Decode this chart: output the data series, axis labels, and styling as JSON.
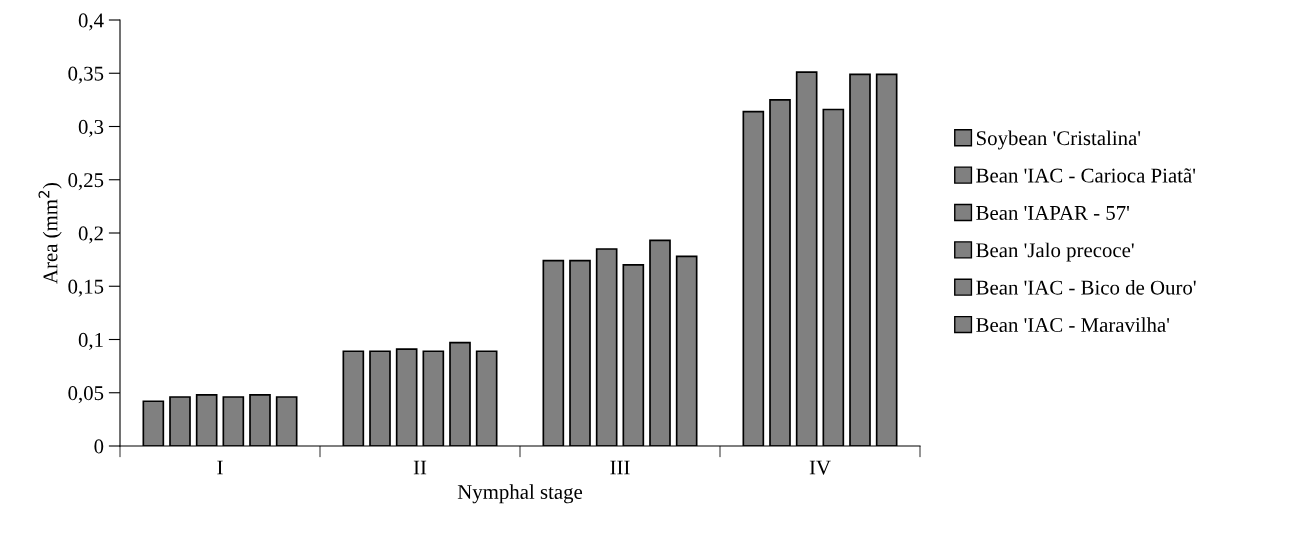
{
  "chart_data": {
    "type": "bar",
    "xlabel": "Nymphal stage",
    "ylabel": "Area (mm$^{2}$)",
    "categories": [
      "I",
      "II",
      "III",
      "IV"
    ],
    "series": [
      {
        "name": "Soybean 'Cristalina'",
        "color": "#808080",
        "values": [
          0.042,
          0.089,
          0.174,
          0.314
        ]
      },
      {
        "name": "Bean 'IAC - Carioca Piatã'",
        "color": "#808080",
        "values": [
          0.046,
          0.089,
          0.174,
          0.325
        ]
      },
      {
        "name": "Bean 'IAPAR - 57'",
        "color": "#808080",
        "values": [
          0.048,
          0.091,
          0.185,
          0.351
        ]
      },
      {
        "name": "Bean 'Jalo precoce'",
        "color": "#808080",
        "values": [
          0.046,
          0.089,
          0.17,
          0.316
        ]
      },
      {
        "name": "Bean 'IAC - Bico de Ouro'",
        "color": "#808080",
        "values": [
          0.048,
          0.097,
          0.193,
          0.349
        ]
      },
      {
        "name": "Bean 'IAC - Maravilha'",
        "color": "#808080",
        "values": [
          0.046,
          0.089,
          0.178,
          0.349
        ]
      }
    ],
    "ylim": [
      0,
      0.4
    ],
    "yticks": [
      {
        "value": 0,
        "label": "0"
      },
      {
        "value": 0.05,
        "label": "0,05"
      },
      {
        "value": 0.1,
        "label": "0,1"
      },
      {
        "value": 0.15,
        "label": "0,15"
      },
      {
        "value": 0.2,
        "label": "0,2"
      },
      {
        "value": 0.25,
        "label": "0,25"
      },
      {
        "value": 0.3,
        "label": "0,3"
      },
      {
        "value": 0.35,
        "label": "0,35"
      },
      {
        "value": 0.4,
        "label": "0,4"
      }
    ],
    "grid": false,
    "legend": "right"
  }
}
